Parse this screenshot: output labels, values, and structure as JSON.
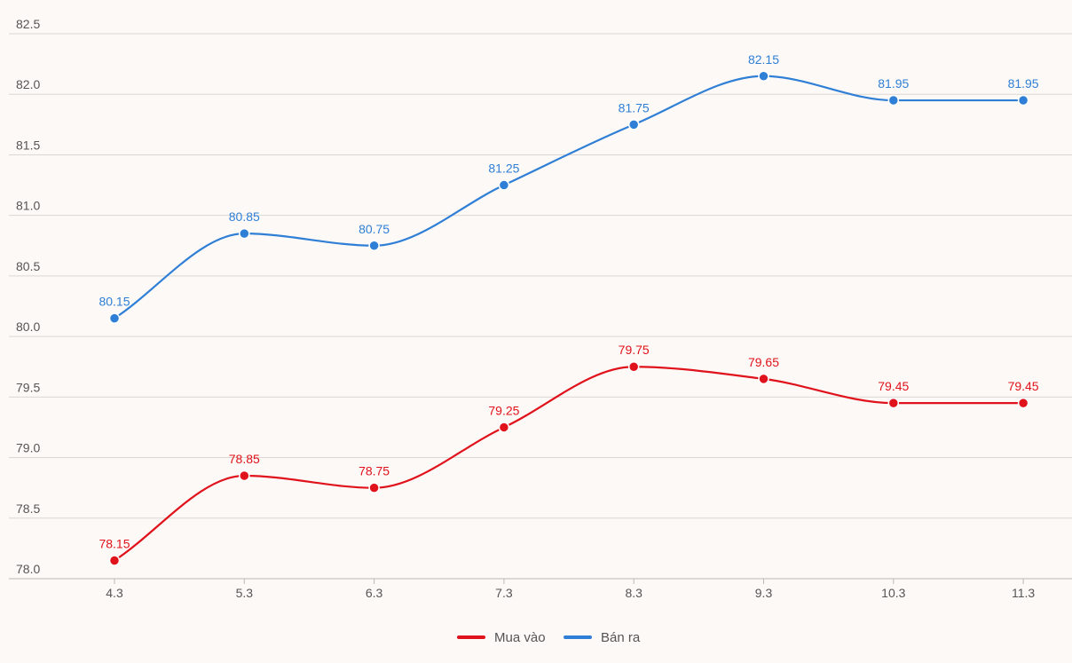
{
  "chart_data": {
    "type": "line",
    "categories": [
      "4.3",
      "5.3",
      "6.3",
      "7.3",
      "8.3",
      "9.3",
      "10.3",
      "11.3"
    ],
    "series": [
      {
        "name": "Mua vào",
        "color": "#e0121b",
        "values": [
          78.15,
          78.85,
          78.75,
          79.25,
          79.75,
          79.65,
          79.45,
          79.45
        ],
        "labels": [
          "78.15",
          "78.85",
          "78.75",
          "79.25",
          "79.75",
          "79.65",
          "79.45",
          "79.45"
        ]
      },
      {
        "name": "Bán ra",
        "color": "#2f7fd6",
        "values": [
          80.15,
          80.85,
          80.75,
          81.25,
          81.75,
          82.15,
          81.95,
          81.95
        ],
        "labels": [
          "80.15",
          "80.85",
          "80.75",
          "81.25",
          "81.75",
          "82.15",
          "81.95",
          "81.95"
        ]
      }
    ],
    "ylim": [
      78.0,
      82.5
    ],
    "yticks": [
      "78.0",
      "78.5",
      "79.0",
      "79.5",
      "80.0",
      "80.5",
      "81.0",
      "81.5",
      "82.0",
      "82.5"
    ],
    "grid": true,
    "legend": "bottom-center"
  }
}
